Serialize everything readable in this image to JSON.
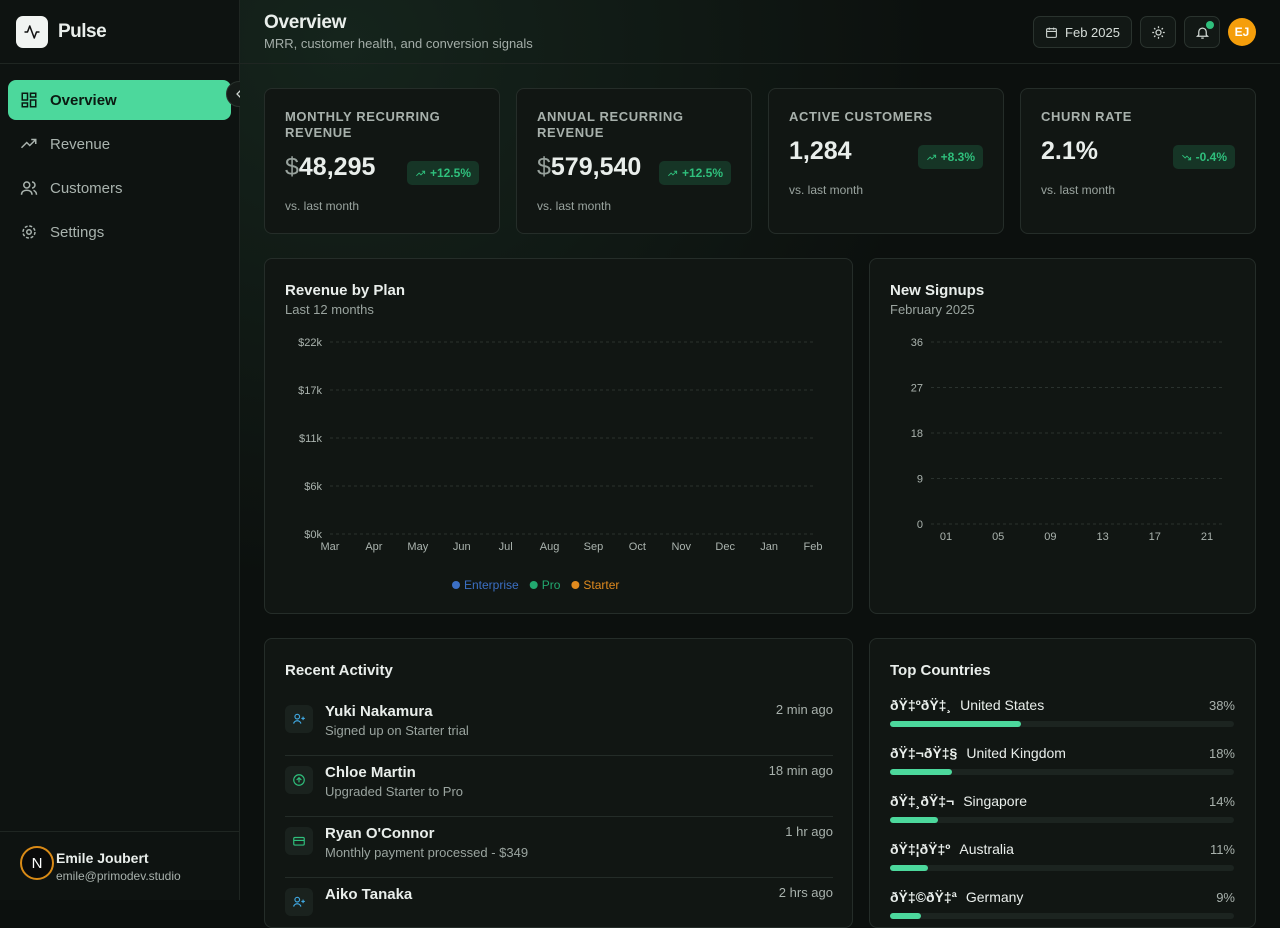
{
  "brand": {
    "name": "Pulse"
  },
  "nav": {
    "items": [
      "Overview",
      "Revenue",
      "Customers",
      "Settings"
    ],
    "active": 0
  },
  "user": {
    "name": "Emile Joubert",
    "email": "emile@primodev.studio",
    "badge": "N"
  },
  "header": {
    "title": "Overview",
    "subtitle": "MRR, customer health, and conversion signals",
    "date": "Feb 2025",
    "avatar": "EJ"
  },
  "kpis": [
    {
      "label": "MONTHLY RECURRING REVENUE",
      "currency": "$",
      "value": "48,295",
      "change": "+12.5%",
      "trend": "up",
      "note": "vs. last month"
    },
    {
      "label": "ANNUAL RECURRING REVENUE",
      "currency": "$",
      "value": "579,540",
      "change": "+12.5%",
      "trend": "up",
      "note": "vs. last month"
    },
    {
      "label": "ACTIVE CUSTOMERS",
      "value": "1,284",
      "change": "+8.3%",
      "trend": "up",
      "note": "vs. last month"
    },
    {
      "label": "CHURN RATE",
      "value": "2.1%",
      "change": "-0.4%",
      "trend": "down",
      "note": "vs. last month"
    }
  ],
  "revenue_chart": {
    "type": "line",
    "title": "Revenue by Plan",
    "subtitle": "Last 12 months",
    "categories": [
      "Mar",
      "Apr",
      "May",
      "Jun",
      "Jul",
      "Aug",
      "Sep",
      "Oct",
      "Nov",
      "Dec",
      "Jan",
      "Feb"
    ],
    "ylim": [
      0,
      22000
    ],
    "yticks": [
      {
        "value": 0,
        "label": "$0k"
      },
      {
        "value": 5500,
        "label": "$6k"
      },
      {
        "value": 11000,
        "label": "$11k"
      },
      {
        "value": 16500,
        "label": "$17k"
      },
      {
        "value": 22000,
        "label": "$22k"
      }
    ],
    "grid": true,
    "legend": [
      {
        "name": "Enterprise",
        "color": "#3b6fc4"
      },
      {
        "name": "Pro",
        "color": "#22a86f"
      },
      {
        "name": "Starter",
        "color": "#e08a1e"
      }
    ]
  },
  "signups_chart": {
    "type": "bar",
    "title": "New Signups",
    "subtitle": "February 2025",
    "categories": [
      "01",
      "05",
      "09",
      "13",
      "17",
      "21"
    ],
    "ylim": [
      0,
      36
    ],
    "yticks": [
      0,
      9,
      18,
      27,
      36
    ],
    "grid": true
  },
  "activity": {
    "title": "Recent Activity",
    "items": [
      {
        "name": "Yuki Nakamura",
        "detail": "Signed up on Starter trial",
        "time": "2 min ago",
        "icon": "user"
      },
      {
        "name": "Chloe Martin",
        "detail": "Upgraded Starter to Pro",
        "time": "18 min ago",
        "icon": "upgrade"
      },
      {
        "name": "Ryan O'Connor",
        "detail": "Monthly payment processed - $349",
        "time": "1 hr ago",
        "icon": "card"
      },
      {
        "name": "Aiko Tanaka",
        "time": "2 hrs ago",
        "icon": "user"
      }
    ]
  },
  "countries": {
    "title": "Top Countries",
    "color": "#4cd89c",
    "max": 100,
    "items": [
      {
        "flag": "ðŸ‡ºðŸ‡¸",
        "name": "United States",
        "value": 38,
        "value_label": "38%"
      },
      {
        "flag": "ðŸ‡¬ðŸ‡§",
        "name": "United Kingdom",
        "value": 18,
        "value_label": "18%"
      },
      {
        "flag": "ðŸ‡¸ðŸ‡¬",
        "name": "Singapore",
        "value": 14,
        "value_label": "14%"
      },
      {
        "flag": "ðŸ‡¦ðŸ‡º",
        "name": "Australia",
        "value": 11,
        "value_label": "11%"
      },
      {
        "flag": "ðŸ‡©ðŸ‡ª",
        "name": "Germany",
        "value": 9,
        "value_label": "9%"
      }
    ]
  }
}
